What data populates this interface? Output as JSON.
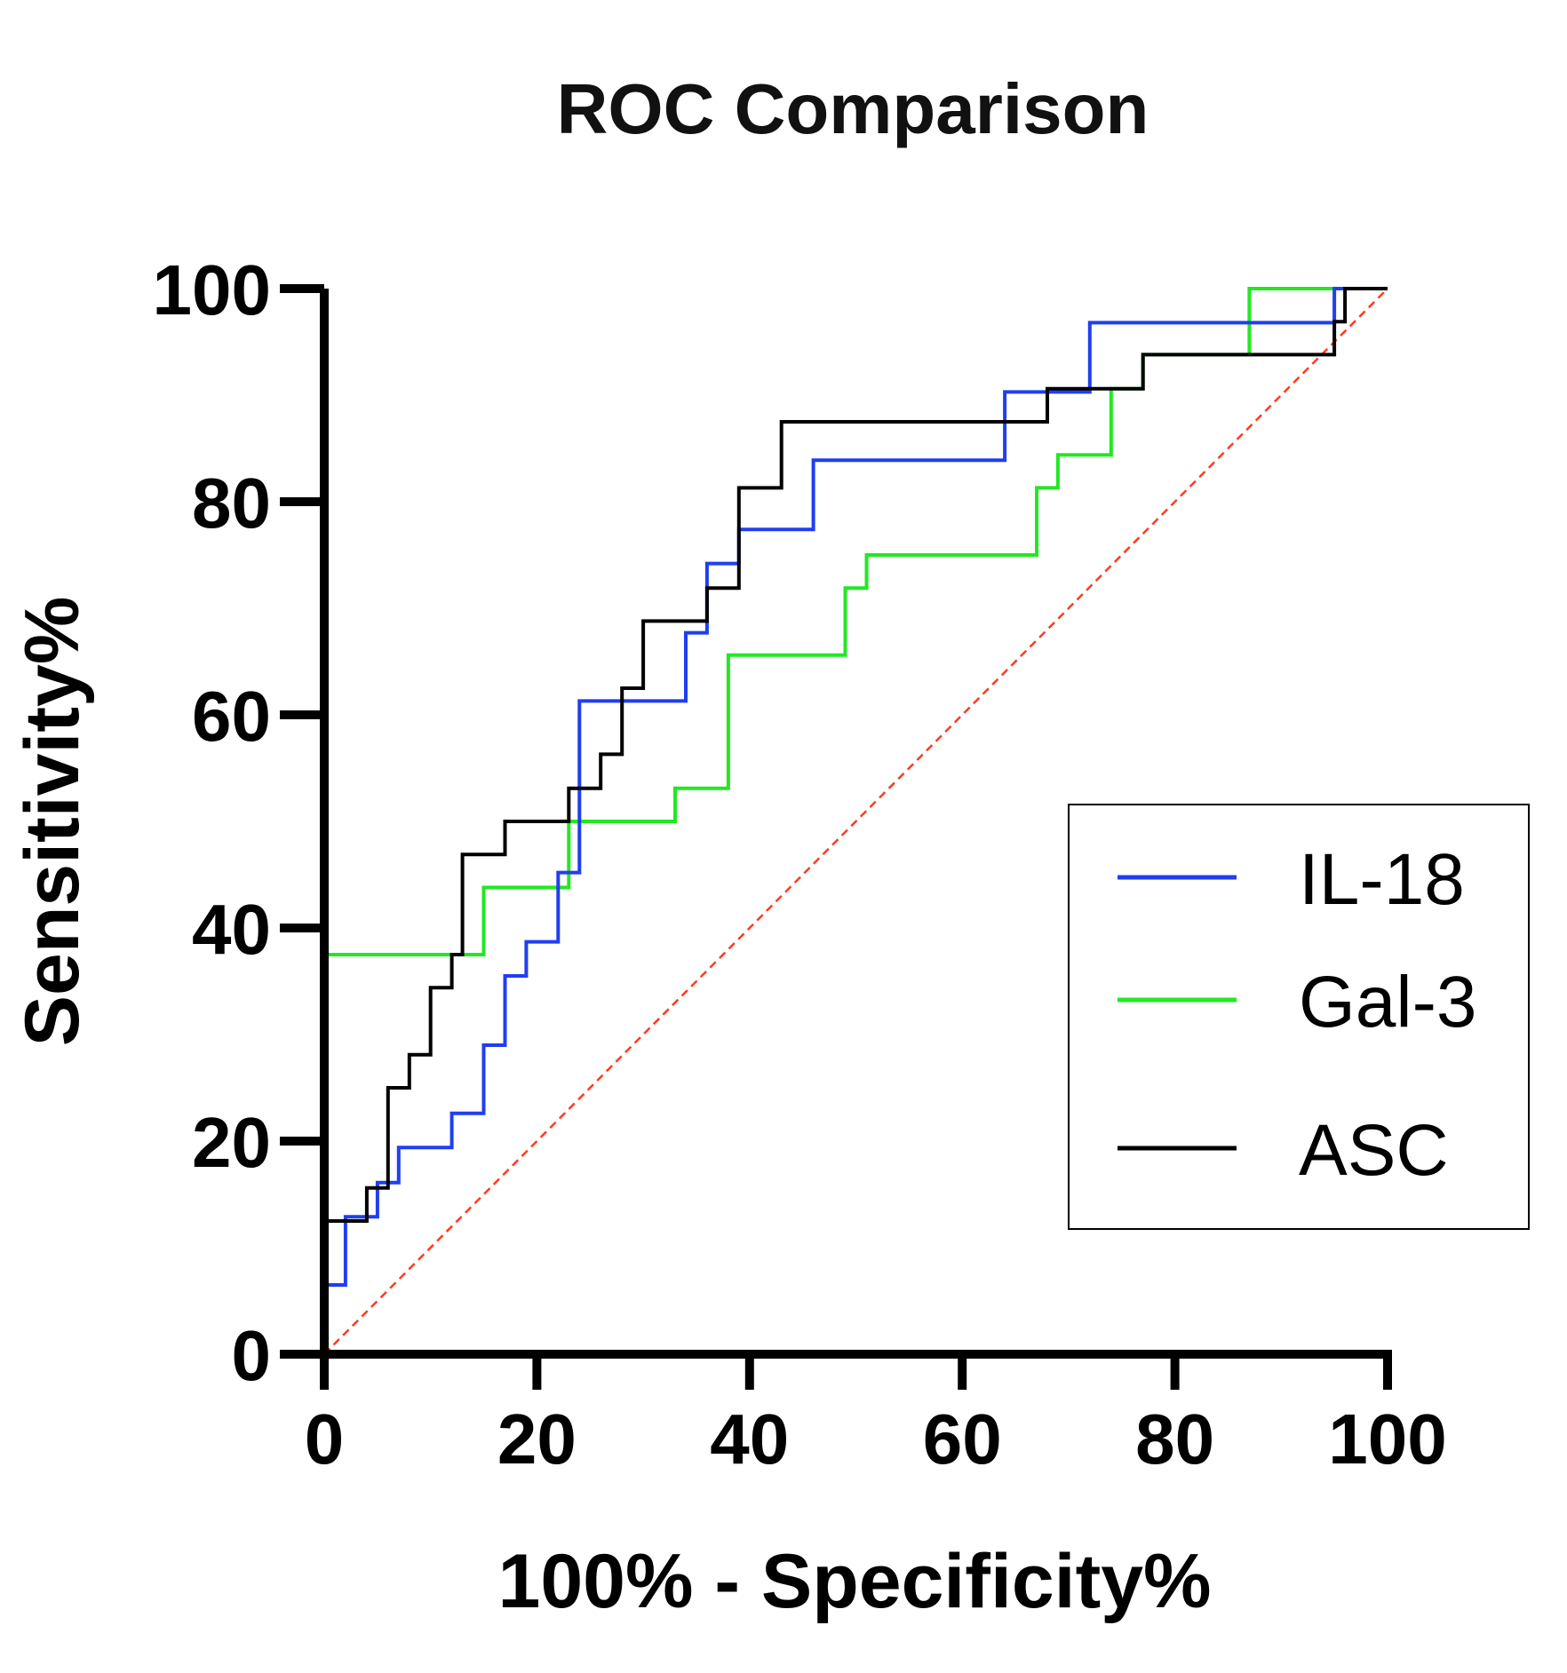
{
  "chart_data": {
    "type": "line",
    "title": "ROC Comparison",
    "xlabel": "100% - Specificity%",
    "ylabel": "Sensitivity%",
    "xlim": [
      0,
      100
    ],
    "ylim": [
      0,
      100
    ],
    "x_ticks": [
      "0",
      "20",
      "40",
      "60",
      "80",
      "100"
    ],
    "y_ticks": [
      "0",
      "20",
      "40",
      "60",
      "80",
      "100"
    ],
    "grid": false,
    "legend_position": "bottom-right",
    "reference_line": {
      "name": "Reference",
      "color": "#ff3b1f",
      "style": "dashed",
      "x": [
        0,
        100
      ],
      "y": [
        0,
        100
      ]
    },
    "series": [
      {
        "name": "IL-18",
        "color": "#1f3ff0",
        "x": [
          0,
          0,
          2,
          2,
          5,
          5,
          7,
          7,
          12,
          12,
          15,
          15,
          17,
          17,
          19,
          19,
          22,
          22,
          24,
          24,
          34,
          34,
          36,
          36,
          39,
          39,
          46,
          46,
          64,
          64,
          72,
          72,
          95,
          95,
          100
        ],
        "y": [
          0,
          6.5,
          6.5,
          12.9,
          12.9,
          16.1,
          16.1,
          19.4,
          19.4,
          22.6,
          22.6,
          29,
          29,
          35.5,
          35.5,
          38.7,
          38.7,
          45.2,
          45.2,
          61.3,
          61.3,
          67.7,
          67.7,
          74.2,
          74.2,
          77.4,
          77.4,
          83.9,
          83.9,
          90.3,
          90.3,
          96.8,
          96.8,
          100,
          100
        ]
      },
      {
        "name": "Gal-3",
        "color": "#22e822",
        "x": [
          0,
          0,
          15,
          15,
          23,
          23,
          33,
          33,
          38,
          38,
          49,
          49,
          51,
          51,
          67,
          67,
          69,
          69,
          74,
          74,
          77,
          77,
          87,
          87,
          100
        ],
        "y": [
          0,
          37.5,
          37.5,
          43.8,
          43.8,
          50,
          50,
          53.1,
          53.1,
          65.6,
          65.6,
          71.9,
          71.9,
          75,
          75,
          81.3,
          81.3,
          84.4,
          84.4,
          90.6,
          90.6,
          93.8,
          93.8,
          100,
          100
        ]
      },
      {
        "name": "ASC",
        "color": "#000000",
        "x": [
          0,
          0,
          4,
          4,
          6,
          6,
          8,
          8,
          10,
          10,
          12,
          12,
          13,
          13,
          17,
          17,
          23,
          23,
          26,
          26,
          28,
          28,
          30,
          30,
          36,
          36,
          39,
          39,
          43,
          43,
          68,
          68,
          77,
          77,
          95,
          95,
          96,
          96,
          100
        ],
        "y": [
          0,
          12.5,
          12.5,
          15.6,
          15.6,
          25,
          25,
          28.1,
          28.1,
          34.4,
          34.4,
          37.5,
          37.5,
          46.9,
          46.9,
          50,
          50,
          53.1,
          53.1,
          56.3,
          56.3,
          62.5,
          62.5,
          68.8,
          68.8,
          71.9,
          71.9,
          81.3,
          81.3,
          87.5,
          87.5,
          90.6,
          90.6,
          93.8,
          93.8,
          96.9,
          96.9,
          100,
          100
        ]
      }
    ]
  }
}
